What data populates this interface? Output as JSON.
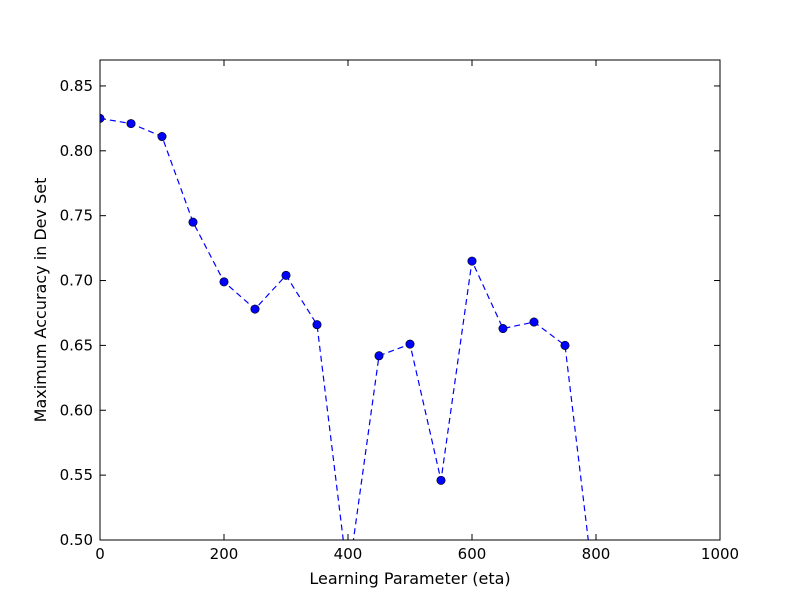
{
  "chart_data": {
    "type": "line",
    "title": "",
    "xlabel": "Learning Parameter (eta)",
    "ylabel": "Maximum Accuracy in Dev Set",
    "xlim": [
      0,
      1000
    ],
    "ylim": [
      0.5,
      0.87
    ],
    "xticks": [
      0,
      200,
      400,
      600,
      800,
      1000
    ],
    "xtick_labels": [
      "0",
      "200",
      "400",
      "600",
      "800",
      "1000"
    ],
    "yticks": [
      0.5,
      0.55,
      0.6,
      0.65,
      0.7,
      0.75,
      0.8,
      0.85
    ],
    "ytick_labels": [
      "0.50",
      "0.55",
      "0.60",
      "0.65",
      "0.70",
      "0.75",
      "0.80",
      "0.85"
    ],
    "grid": false,
    "legend": "none",
    "series": [
      {
        "color": "#0000ff",
        "line_style": "dashed",
        "marker": "circle",
        "x": [
          0,
          50,
          100,
          150,
          200,
          250,
          300,
          350,
          400,
          450,
          500,
          550,
          600,
          650,
          700,
          750,
          800
        ],
        "y": [
          0.825,
          0.821,
          0.811,
          0.745,
          0.699,
          0.678,
          0.704,
          0.666,
          0.47,
          0.642,
          0.651,
          0.546,
          0.715,
          0.663,
          0.668,
          0.65,
          0.45
        ]
      }
    ]
  }
}
